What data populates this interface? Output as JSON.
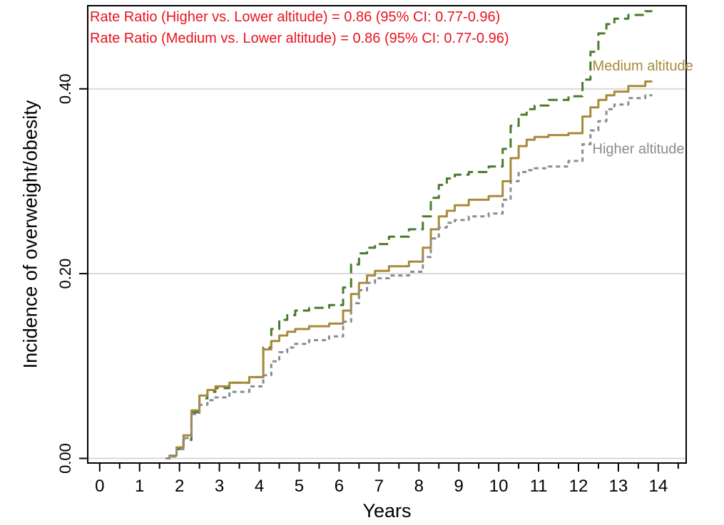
{
  "chart_data": {
    "type": "line",
    "title": "",
    "xlabel": "Years",
    "ylabel": "Incidence of overweight/obesity",
    "xlim": [
      -0.3,
      14.7
    ],
    "ylim": [
      -0.005,
      0.49
    ],
    "xticks": [
      0,
      1,
      2,
      3,
      4,
      5,
      6,
      7,
      8,
      9,
      10,
      11,
      12,
      13,
      14
    ],
    "xtick_labels": [
      "0",
      "1",
      "2",
      "3",
      "4",
      "5",
      "6",
      "7",
      "8",
      "9",
      "10",
      "11",
      "12",
      "13",
      "14"
    ],
    "xminor_ticks": [
      0.5,
      1.5,
      2.5,
      3.5,
      4.5,
      5.5,
      6.5,
      7.5,
      8.5,
      9.5,
      10.5,
      11.5,
      12.5,
      13.5,
      14.5
    ],
    "yticks": [
      0,
      0.2,
      0.4
    ],
    "ytick_labels": [
      "0.00",
      "0.20",
      "0.40"
    ],
    "grid": "horizontal",
    "legend": "none",
    "annotations": [
      {
        "id": "rr-higher",
        "text": "Rate Ratio (Higher vs. Lower altitude) = 0.86 (95% CI: 0.77-0.96)",
        "color": "#e8141e"
      },
      {
        "id": "rr-medium",
        "text": "Rate Ratio (Medium vs. Lower altitude) = 0.86 (95% CI: 0.77-0.96)",
        "color": "#e8141e"
      }
    ],
    "series": [
      {
        "name": "Lower altitude",
        "color": "#4a7a2c",
        "dash": "long-dash",
        "label_at": [
          14.1,
          0.503
        ],
        "x": [
          1.65,
          1.85,
          2.0,
          2.2,
          2.4,
          2.6,
          2.8,
          3.0,
          3.5,
          4.0,
          4.2,
          4.4,
          4.6,
          4.8,
          5.0,
          5.5,
          6.0,
          6.2,
          6.4,
          6.6,
          6.8,
          7.0,
          7.5,
          8.0,
          8.2,
          8.4,
          8.6,
          8.8,
          9.0,
          9.5,
          10.0,
          10.2,
          10.4,
          10.6,
          10.8,
          11.0,
          11.5,
          12.0,
          12.2,
          12.4,
          12.6,
          12.8,
          13.0,
          13.5,
          13.85
        ],
        "values": [
          0.0,
          0.003,
          0.01,
          0.02,
          0.05,
          0.065,
          0.072,
          0.076,
          0.082,
          0.088,
          0.12,
          0.14,
          0.15,
          0.155,
          0.16,
          0.163,
          0.166,
          0.185,
          0.21,
          0.222,
          0.228,
          0.232,
          0.24,
          0.248,
          0.262,
          0.282,
          0.296,
          0.303,
          0.307,
          0.31,
          0.316,
          0.335,
          0.36,
          0.372,
          0.378,
          0.382,
          0.388,
          0.392,
          0.41,
          0.44,
          0.46,
          0.47,
          0.476,
          0.48,
          0.484
        ]
      },
      {
        "name": "Medium altitude",
        "color": "#a78a3a",
        "dash": "solid",
        "label_at": [
          12.35,
          0.42
        ],
        "x": [
          1.65,
          1.85,
          2.0,
          2.2,
          2.4,
          2.6,
          2.8,
          3.0,
          3.5,
          4.0,
          4.2,
          4.4,
          4.6,
          4.8,
          5.0,
          5.5,
          6.0,
          6.2,
          6.4,
          6.6,
          6.8,
          7.0,
          7.5,
          8.0,
          8.2,
          8.4,
          8.6,
          8.8,
          9.0,
          9.5,
          10.0,
          10.2,
          10.4,
          10.6,
          10.8,
          11.0,
          11.5,
          12.0,
          12.2,
          12.4,
          12.6,
          12.8,
          13.0,
          13.5,
          13.85
        ],
        "values": [
          0.0,
          0.003,
          0.012,
          0.025,
          0.052,
          0.068,
          0.074,
          0.078,
          0.082,
          0.088,
          0.118,
          0.127,
          0.133,
          0.137,
          0.14,
          0.143,
          0.146,
          0.16,
          0.178,
          0.19,
          0.198,
          0.203,
          0.208,
          0.213,
          0.228,
          0.248,
          0.262,
          0.268,
          0.274,
          0.28,
          0.284,
          0.3,
          0.325,
          0.338,
          0.345,
          0.348,
          0.35,
          0.352,
          0.37,
          0.38,
          0.388,
          0.393,
          0.397,
          0.403,
          0.408
        ]
      },
      {
        "name": "Higher altitude",
        "color": "#8c8c8c",
        "dash": "short-dash",
        "label_at": [
          12.35,
          0.33
        ],
        "x": [
          1.65,
          1.85,
          2.0,
          2.2,
          2.4,
          2.6,
          2.8,
          3.0,
          3.5,
          4.0,
          4.2,
          4.4,
          4.6,
          4.8,
          5.0,
          5.5,
          6.0,
          6.2,
          6.4,
          6.6,
          6.8,
          7.0,
          7.5,
          8.0,
          8.2,
          8.4,
          8.6,
          8.8,
          9.0,
          9.5,
          10.0,
          10.2,
          10.4,
          10.6,
          10.8,
          11.0,
          11.5,
          12.0,
          12.2,
          12.4,
          12.6,
          12.8,
          13.0,
          13.5,
          13.85
        ],
        "values": [
          0.0,
          0.002,
          0.01,
          0.022,
          0.048,
          0.058,
          0.063,
          0.066,
          0.072,
          0.078,
          0.09,
          0.105,
          0.115,
          0.12,
          0.124,
          0.128,
          0.132,
          0.148,
          0.168,
          0.182,
          0.19,
          0.195,
          0.198,
          0.202,
          0.218,
          0.238,
          0.25,
          0.255,
          0.258,
          0.262,
          0.265,
          0.28,
          0.3,
          0.31,
          0.312,
          0.314,
          0.316,
          0.322,
          0.34,
          0.355,
          0.365,
          0.378,
          0.383,
          0.39,
          0.393
        ]
      }
    ]
  }
}
